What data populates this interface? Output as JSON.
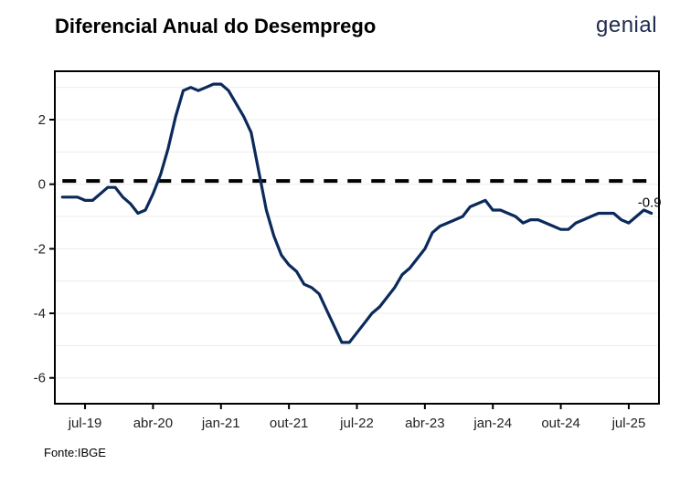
{
  "title": "Diferencial Anual do Desemprego",
  "brand": "genial",
  "source": "Fonte:IBGE",
  "colors": {
    "line": "#0b2a5b",
    "reference": "#000000",
    "grid": "#ececec",
    "frame": "#000000"
  },
  "chart_data": {
    "type": "line",
    "title": "Diferencial Anual do Desemprego",
    "xlabel": "",
    "ylabel": "",
    "ylim": [
      -6.8,
      3.5
    ],
    "xlim": [
      "2019-03",
      "2025-11"
    ],
    "y_ticks": [
      -6,
      -4,
      -2,
      0,
      2
    ],
    "y_tick_labels": [
      "-6",
      "-4",
      "-2",
      "0",
      "2"
    ],
    "x_ticks": [
      "2019-07",
      "2020-04",
      "2021-01",
      "2021-10",
      "2022-07",
      "2023-04",
      "2024-01",
      "2024-10",
      "2025-07"
    ],
    "x_tick_labels": [
      "jul-19",
      "abr-20",
      "jan-21",
      "out-21",
      "jul-22",
      "abr-23",
      "jan-24",
      "out-24",
      "jul-25"
    ],
    "grid": true,
    "legend": "none",
    "reference_line": {
      "y": 0.1,
      "from": "2019-04",
      "to": "2025-10",
      "style": "dashed"
    },
    "end_label": "-0.9",
    "series": [
      {
        "x": [
          "2019-04",
          "2019-05",
          "2019-06",
          "2019-07",
          "2019-08",
          "2019-09",
          "2019-10",
          "2019-11",
          "2019-12",
          "2020-01",
          "2020-02",
          "2020-03",
          "2020-04",
          "2020-05",
          "2020-06",
          "2020-07",
          "2020-08",
          "2020-09",
          "2020-10",
          "2020-11",
          "2020-12",
          "2021-01",
          "2021-02",
          "2021-03",
          "2021-04",
          "2021-05",
          "2021-06",
          "2021-07",
          "2021-08",
          "2021-09",
          "2021-10",
          "2021-11",
          "2021-12",
          "2022-01",
          "2022-02",
          "2022-03",
          "2022-04",
          "2022-05",
          "2022-06",
          "2022-07",
          "2022-08",
          "2022-09",
          "2022-10",
          "2022-11",
          "2022-12",
          "2023-01",
          "2023-02",
          "2023-03",
          "2023-04",
          "2023-05",
          "2023-06",
          "2023-07",
          "2023-08",
          "2023-09",
          "2023-10",
          "2023-11",
          "2023-12",
          "2024-01",
          "2024-02",
          "2024-03",
          "2024-04",
          "2024-05",
          "2024-06",
          "2024-07",
          "2024-08",
          "2024-09",
          "2024-10",
          "2024-11",
          "2024-12",
          "2025-01",
          "2025-02",
          "2025-03",
          "2025-04",
          "2025-05",
          "2025-06",
          "2025-07",
          "2025-08",
          "2025-09",
          "2025-10"
        ],
        "values": [
          -0.4,
          -0.4,
          -0.4,
          -0.5,
          -0.5,
          -0.3,
          -0.1,
          -0.1,
          -0.4,
          -0.6,
          -0.9,
          -0.8,
          -0.3,
          0.3,
          1.1,
          2.1,
          2.9,
          3.0,
          2.9,
          3.0,
          3.1,
          3.1,
          2.9,
          2.5,
          2.1,
          1.6,
          0.4,
          -0.8,
          -1.6,
          -2.2,
          -2.5,
          -2.7,
          -3.1,
          -3.2,
          -3.4,
          -3.9,
          -4.4,
          -4.9,
          -4.9,
          -4.6,
          -4.3,
          -4.0,
          -3.8,
          -3.5,
          -3.2,
          -2.8,
          -2.6,
          -2.3,
          -2.0,
          -1.5,
          -1.3,
          -1.2,
          -1.1,
          -1.0,
          -0.7,
          -0.6,
          -0.5,
          -0.8,
          -0.8,
          -0.9,
          -1.0,
          -1.2,
          -1.1,
          -1.1,
          -1.2,
          -1.3,
          -1.4,
          -1.4,
          -1.2,
          -1.1,
          -1.0,
          -0.9,
          -0.9,
          -0.9,
          -1.1,
          -1.2,
          -1.0,
          -0.8,
          -0.9
        ]
      }
    ]
  }
}
